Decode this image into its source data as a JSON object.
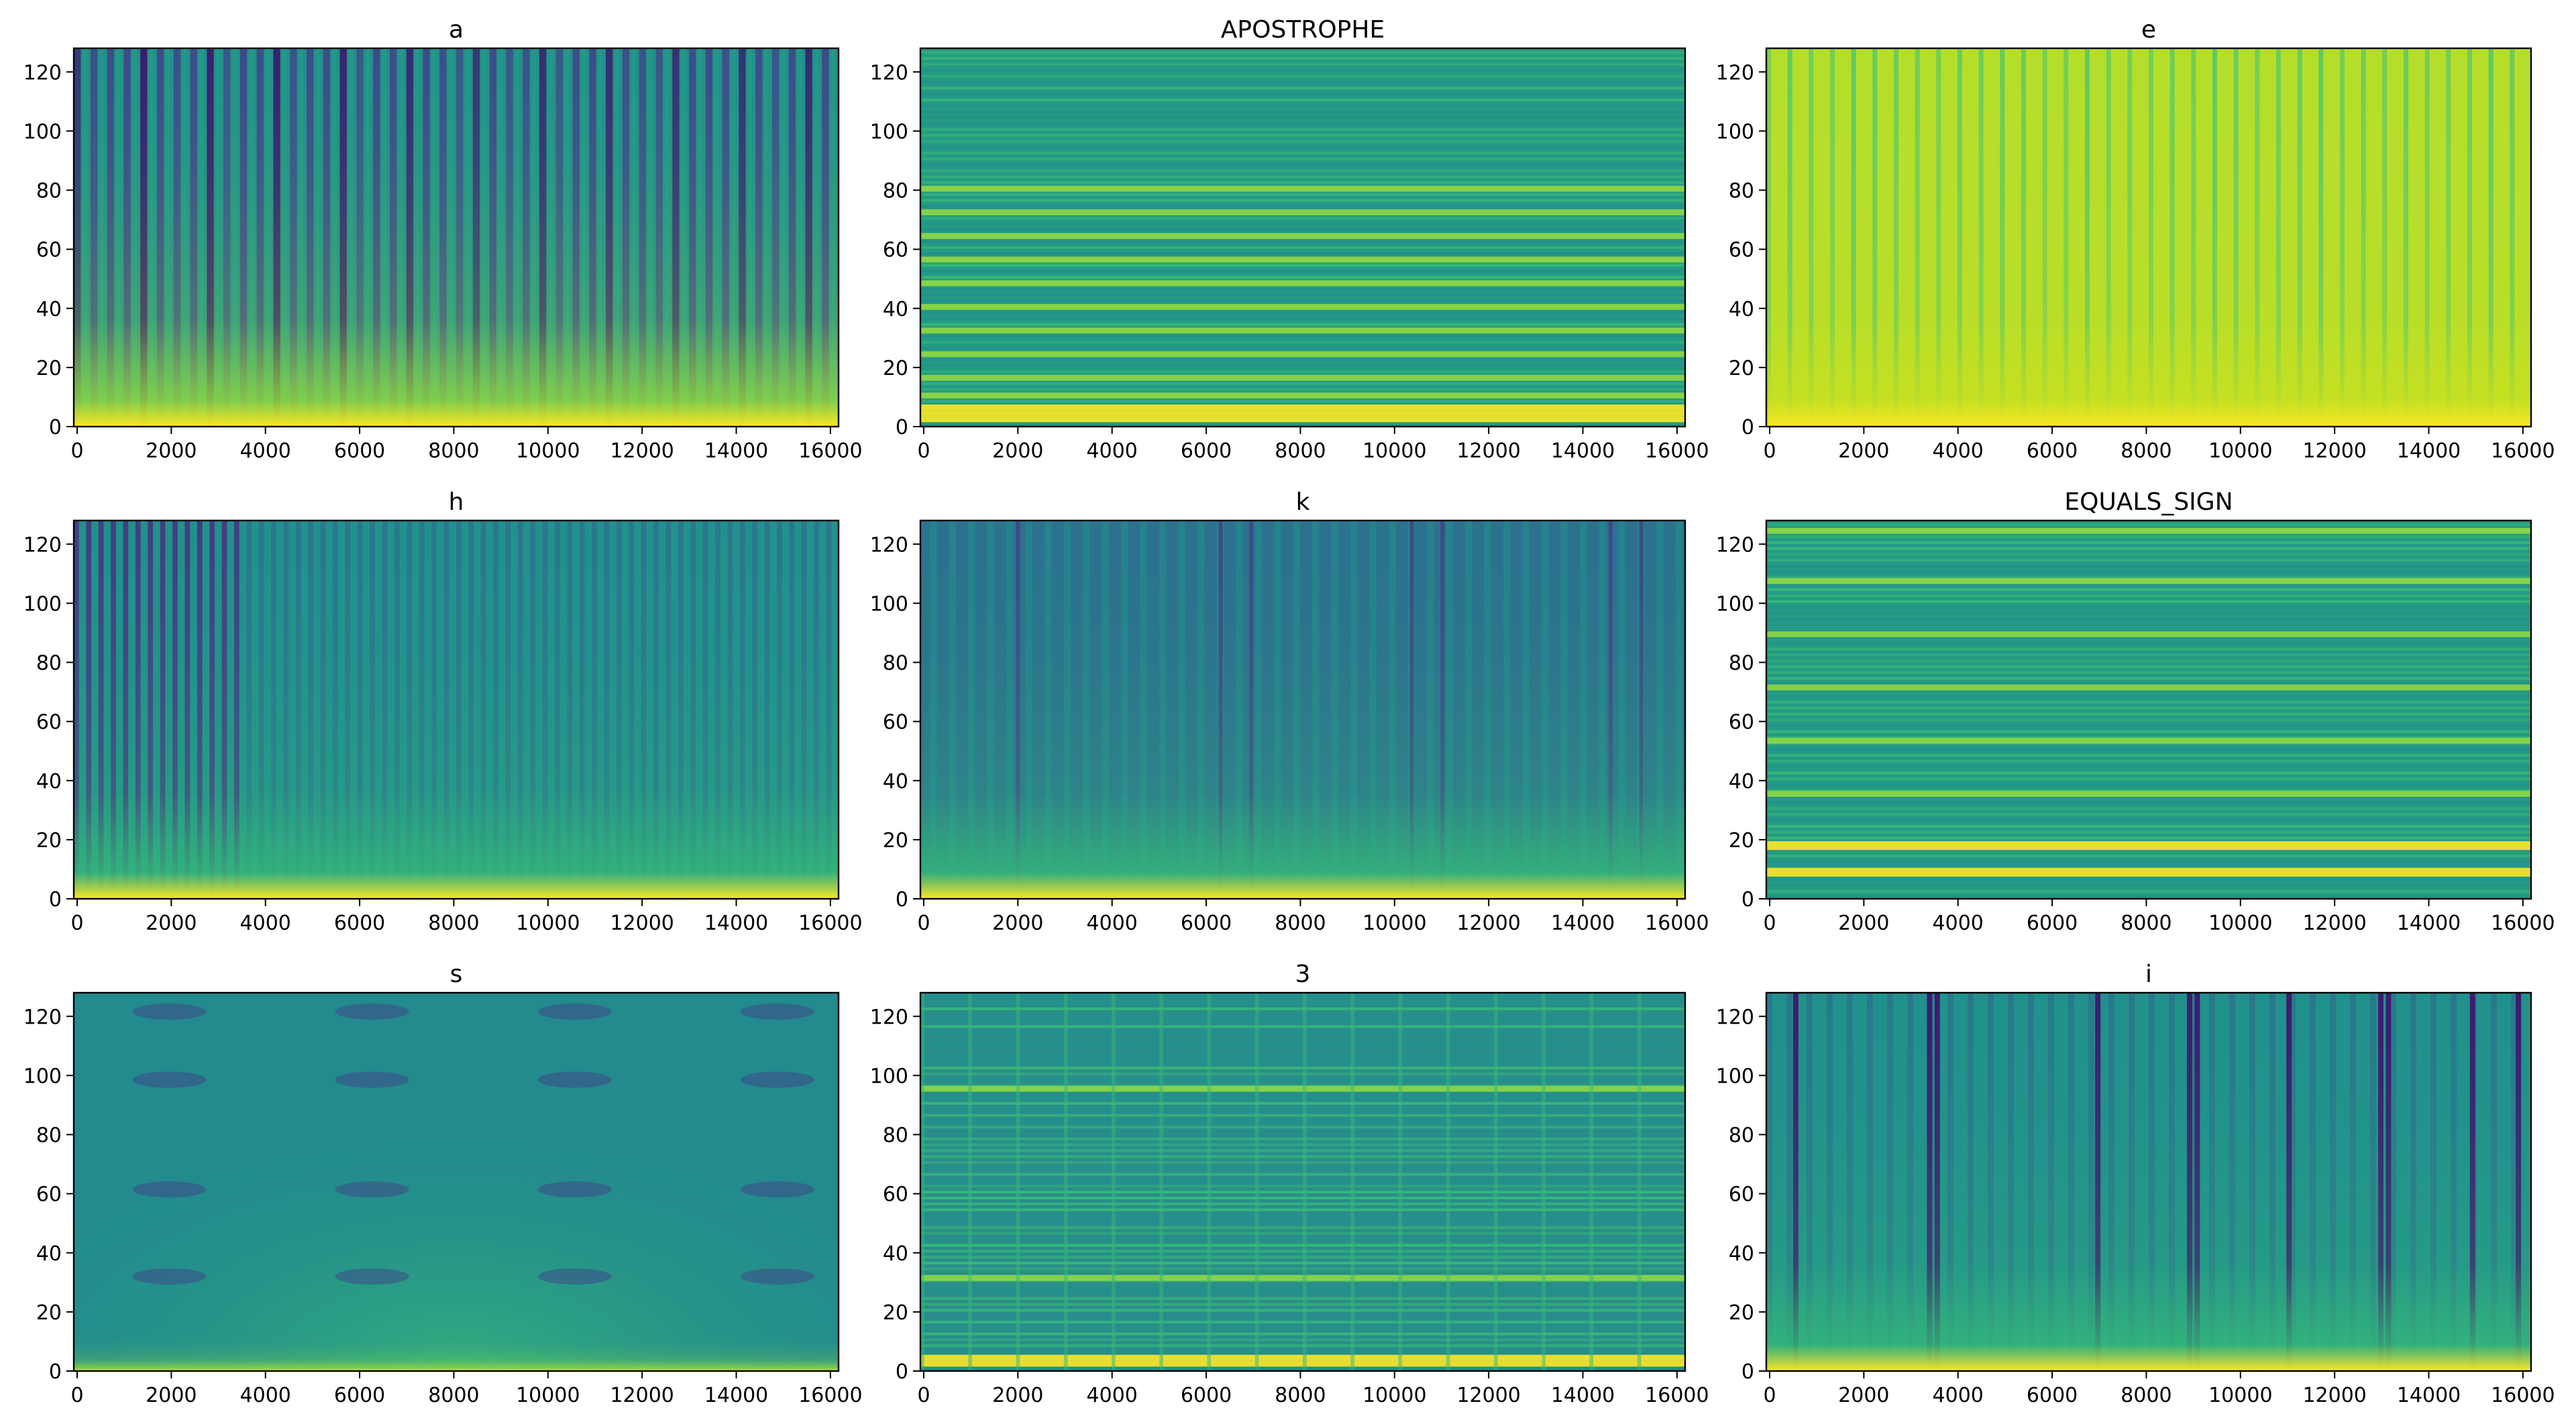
{
  "chart_data": [
    {
      "type": "heatmap",
      "title": "a",
      "pattern": "vstripes",
      "xlim": [
        0,
        16000
      ],
      "ylim": [
        0,
        128
      ],
      "xticks": [
        0,
        2000,
        4000,
        6000,
        8000,
        10000,
        12000,
        14000,
        16000
      ],
      "yticks": [
        0,
        20,
        40,
        60,
        80,
        100,
        120
      ],
      "colormap": [
        "#440154",
        "#31688e",
        "#21918c",
        "#35b779",
        "#90d743",
        "#fde725"
      ]
    },
    {
      "type": "heatmap",
      "title": "APOSTROPHE",
      "pattern": "hbands",
      "xlim": [
        0,
        16000
      ],
      "ylim": [
        0,
        128
      ],
      "xticks": [
        0,
        2000,
        4000,
        6000,
        8000,
        10000,
        12000,
        14000,
        16000
      ],
      "yticks": [
        0,
        20,
        40,
        60,
        80,
        100,
        120
      ]
    },
    {
      "type": "heatmap",
      "title": "e",
      "pattern": "vstripes-bright",
      "xlim": [
        0,
        16000
      ],
      "ylim": [
        0,
        128
      ],
      "xticks": [
        0,
        2000,
        4000,
        6000,
        8000,
        10000,
        12000,
        14000,
        16000
      ],
      "yticks": [
        0,
        20,
        40,
        60,
        80,
        100,
        120
      ]
    },
    {
      "type": "heatmap",
      "title": "h",
      "pattern": "vstripes-dense",
      "xlim": [
        0,
        16000
      ],
      "ylim": [
        0,
        128
      ],
      "xticks": [
        0,
        2000,
        4000,
        6000,
        8000,
        10000,
        12000,
        14000,
        16000
      ],
      "yticks": [
        0,
        20,
        40,
        60,
        80,
        100,
        120
      ]
    },
    {
      "type": "heatmap",
      "title": "k",
      "pattern": "vstripes-sparse",
      "xlim": [
        0,
        16000
      ],
      "ylim": [
        0,
        128
      ],
      "xticks": [
        0,
        2000,
        4000,
        6000,
        8000,
        10000,
        12000,
        14000,
        16000
      ],
      "yticks": [
        0,
        20,
        40,
        60,
        80,
        100,
        120
      ]
    },
    {
      "type": "heatmap",
      "title": "EQUALS_SIGN",
      "pattern": "hbands-strong",
      "xlim": [
        0,
        16000
      ],
      "ylim": [
        0,
        128
      ],
      "xticks": [
        0,
        2000,
        4000,
        6000,
        8000,
        10000,
        12000,
        14000,
        16000
      ],
      "yticks": [
        0,
        20,
        40,
        60,
        80,
        100,
        120
      ]
    },
    {
      "type": "heatmap",
      "title": "s",
      "pattern": "smooth",
      "xlim": [
        0,
        16000
      ],
      "ylim": [
        0,
        128
      ],
      "xticks": [
        0,
        2000,
        4000,
        6000,
        8000,
        10000,
        12000,
        14000,
        16000
      ],
      "yticks": [
        0,
        20,
        40,
        60,
        80,
        100,
        120
      ]
    },
    {
      "type": "heatmap",
      "title": "3",
      "pattern": "hbands-fine",
      "xlim": [
        0,
        16000
      ],
      "ylim": [
        0,
        128
      ],
      "xticks": [
        0,
        2000,
        4000,
        6000,
        8000,
        10000,
        12000,
        14000,
        16000
      ],
      "yticks": [
        0,
        20,
        40,
        60,
        80,
        100,
        120
      ]
    },
    {
      "type": "heatmap",
      "title": "i",
      "pattern": "vstripes-mixed",
      "xlim": [
        0,
        16000
      ],
      "ylim": [
        0,
        128
      ],
      "xticks": [
        0,
        2000,
        4000,
        6000,
        8000,
        10000,
        12000,
        14000,
        16000
      ],
      "yticks": [
        0,
        20,
        40,
        60,
        80,
        100,
        120
      ]
    }
  ]
}
